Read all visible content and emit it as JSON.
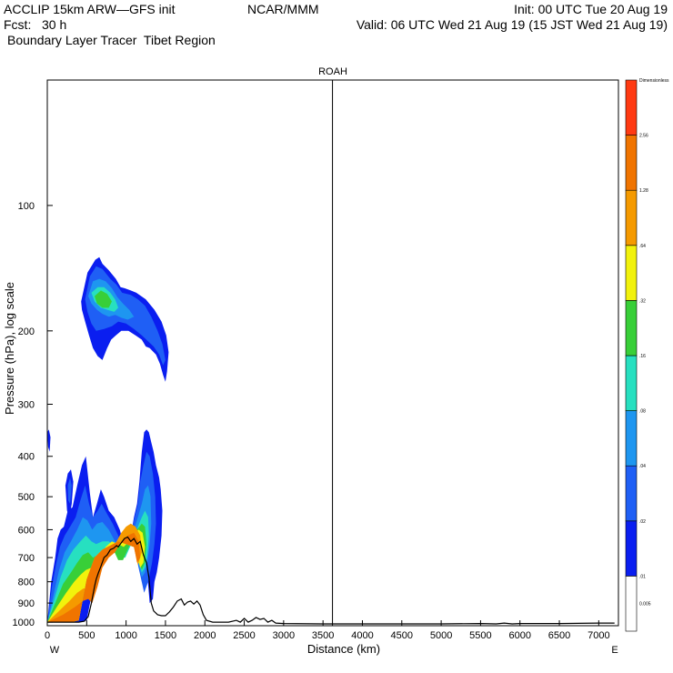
{
  "header": {
    "line1_left": "ACCLIP 15km ARW—GFS init",
    "line1_center": "NCAR/MMM",
    "line1_right": "Init: 00 UTC Tue 20 Aug 19",
    "line2_left": "Fcst:   30 h",
    "line2_right": "Valid: 06 UTC Wed 21 Aug 19 (15 JST Wed 21 Aug 19)",
    "line3_left": "Boundary Layer Tracer  Tibet Region"
  },
  "chart_data": {
    "type": "cross-section",
    "title": "ROAH",
    "xlabel": "Distance (km)",
    "ylabel": "Pressure (hPa), log scale",
    "x_ticks": [
      0,
      500,
      1000,
      1500,
      2000,
      2500,
      3000,
      3500,
      4000,
      4500,
      5000,
      5500,
      6000,
      6500,
      7000
    ],
    "xlim": [
      0,
      7250
    ],
    "y_scale": "log",
    "y_ticks": [
      100,
      200,
      300,
      400,
      500,
      600,
      700,
      800,
      900,
      1000
    ],
    "ylim": [
      1020,
      50
    ],
    "x_left_label": "W",
    "x_right_label": "E",
    "vertical_line_km": 3620,
    "colorbar": {
      "levels": [
        "0.005",
        ".01",
        ".02",
        ".04",
        ".08",
        ".16",
        ".32",
        ".64",
        "1.28",
        "2.56",
        "Dimensionless"
      ],
      "colors": [
        "#ffffff",
        "#0a1ef0",
        "#1f5ff5",
        "#1e96f0",
        "#27e0c0",
        "#38cf38",
        "#f2f20c",
        "#f59a00",
        "#f07400",
        "#ff3a12"
      ]
    },
    "terrain": {
      "x_km": [
        0,
        100,
        200,
        300,
        400,
        470,
        520,
        560,
        580,
        600,
        620,
        650,
        680,
        720,
        760,
        800,
        840,
        880,
        900,
        940,
        980,
        1020,
        1060,
        1100,
        1140,
        1180,
        1220,
        1260,
        1290,
        1320,
        1350,
        1400,
        1450,
        1500,
        1550,
        1600,
        1650,
        1700,
        1740,
        1780,
        1820,
        1860,
        1900,
        1940,
        1980,
        2020,
        2100,
        2200,
        2300,
        2400,
        2450,
        2500,
        2550,
        2600,
        2650,
        2700,
        2750,
        2800,
        2850,
        2900,
        3000,
        3500,
        4000,
        4500,
        5000,
        5500,
        5700,
        5800,
        5900,
        6000,
        6500,
        7000,
        7200
      ],
      "p_hpa": [
        1000,
        1000,
        1000,
        1000,
        1000,
        995,
        970,
        900,
        860,
        820,
        790,
        760,
        735,
        700,
        690,
        670,
        665,
        655,
        660,
        645,
        630,
        625,
        640,
        630,
        650,
        640,
        690,
        720,
        780,
        900,
        940,
        960,
        965,
        965,
        945,
        920,
        890,
        880,
        910,
        895,
        890,
        905,
        890,
        910,
        960,
        990,
        1000,
        1000,
        1000,
        990,
        1000,
        980,
        1000,
        990,
        975,
        985,
        980,
        1000,
        990,
        1005,
        1008,
        1010,
        1010,
        1010,
        1010,
        1008,
        1010,
        1005,
        1010,
        1008,
        1008,
        1005,
        1005
      ]
    },
    "tracer_blobs": [
      {
        "level": ".01",
        "x_km": [
          430,
          510,
          610,
          660,
          700,
          780,
          870,
          930,
          980,
          1060,
          1130,
          1250,
          1360,
          1450,
          1510,
          1540,
          1520,
          1500,
          1470,
          1430,
          1380,
          1300,
          1250,
          1200,
          1120,
          1030,
          940,
          870,
          810,
          760,
          700,
          640,
          580,
          530,
          480,
          440
        ],
        "p_hpa": [
          170,
          145,
          135,
          133,
          138,
          143,
          150,
          157,
          158,
          160,
          162,
          168,
          178,
          190,
          205,
          225,
          250,
          265,
          255,
          240,
          228,
          220,
          218,
          210,
          205,
          200,
          200,
          205,
          210,
          220,
          235,
          230,
          220,
          205,
          190,
          178
        ]
      },
      {
        "level": ".02",
        "x_km": [
          480,
          540,
          620,
          700,
          800,
          880,
          950,
          1060,
          1150,
          1240,
          1320,
          1400,
          1460,
          1500,
          1470,
          1420,
          1350,
          1280,
          1200,
          1100,
          1000,
          900,
          820,
          720,
          620,
          560,
          510
        ],
        "p_hpa": [
          168,
          148,
          140,
          142,
          150,
          155,
          162,
          164,
          168,
          174,
          185,
          200,
          215,
          235,
          242,
          228,
          218,
          212,
          205,
          198,
          192,
          190,
          195,
          198,
          200,
          192,
          180
        ]
      },
      {
        "level": ".04",
        "x_km": [
          520,
          580,
          660,
          740,
          820,
          890,
          960,
          1040,
          1100,
          1020,
          940,
          860,
          780,
          700,
          630,
          560
        ],
        "p_hpa": [
          165,
          152,
          150,
          152,
          158,
          166,
          172,
          178,
          185,
          188,
          186,
          183,
          185,
          182,
          178,
          172
        ]
      },
      {
        "level": ".08",
        "x_km": [
          560,
          640,
          720,
          800,
          860,
          900,
          850,
          760,
          680,
          600
        ],
        "p_hpa": [
          162,
          157,
          157,
          162,
          168,
          176,
          180,
          178,
          176,
          170
        ]
      },
      {
        "level": ".16",
        "x_km": [
          600,
          680,
          760,
          820,
          780,
          700,
          630
        ],
        "p_hpa": [
          165,
          160,
          163,
          170,
          176,
          176,
          172
        ]
      },
      {
        "level": ".01",
        "x_km": [
          0,
          50,
          100,
          130,
          170,
          210,
          260,
          320,
          380,
          440,
          490,
          540,
          580,
          630,
          680,
          720,
          780,
          850,
          920,
          970,
          1020,
          1060,
          1100,
          1140,
          1170,
          1200,
          1230,
          1260,
          1290,
          1320,
          1350,
          1380,
          1420,
          1440,
          1460,
          1450,
          1420,
          1390,
          1360,
          1340,
          1300,
          1240,
          1100,
          900,
          700,
          600,
          500,
          400,
          300,
          200,
          100,
          0
        ],
        "p_hpa": [
          1000,
          800,
          700,
          630,
          600,
          590,
          540,
          530,
          470,
          420,
          400,
          490,
          560,
          520,
          480,
          500,
          540,
          560,
          600,
          650,
          640,
          620,
          560,
          520,
          460,
          390,
          350,
          345,
          350,
          370,
          390,
          420,
          450,
          480,
          540,
          620,
          700,
          760,
          800,
          880,
          900,
          660,
          640,
          670,
          700,
          790,
          990,
          1000,
          1000,
          1000,
          1000,
          1000
        ]
      },
      {
        "level": ".02",
        "x_km": [
          0,
          60,
          110,
          160,
          220,
          290,
          360,
          420,
          480,
          530,
          580,
          640,
          690,
          760,
          830,
          900,
          960,
          1010,
          1060,
          1100,
          1150,
          1180,
          1220,
          1260,
          1300,
          1340,
          1370,
          1380,
          1360,
          1330,
          1280,
          1230,
          1100,
          900,
          700,
          600,
          500,
          400,
          300,
          200,
          100,
          0
        ],
        "p_hpa": [
          1000,
          820,
          730,
          660,
          620,
          590,
          560,
          510,
          470,
          520,
          560,
          540,
          520,
          550,
          580,
          620,
          665,
          650,
          610,
          570,
          520,
          460,
          420,
          390,
          400,
          440,
          500,
          580,
          650,
          720,
          800,
          850,
          660,
          640,
          670,
          700,
          790,
          990,
          1000,
          1000,
          1000,
          1000
        ]
      },
      {
        "level": ".04",
        "x_km": [
          0,
          80,
          150,
          220,
          300,
          380,
          450,
          510,
          570,
          630,
          700,
          780,
          860,
          930,
          990,
          1050,
          1100,
          1150,
          1200,
          1240,
          1280,
          1310,
          1320,
          1300,
          1270,
          1240,
          1200,
          1100,
          900,
          700,
          600,
          500,
          400,
          300,
          200,
          100,
          0
        ],
        "p_hpa": [
          1000,
          860,
          750,
          680,
          640,
          600,
          560,
          570,
          600,
          580,
          575,
          600,
          640,
          680,
          670,
          630,
          600,
          560,
          520,
          480,
          470,
          500,
          580,
          650,
          720,
          760,
          780,
          660,
          640,
          670,
          700,
          790,
          990,
          1000,
          1000,
          1000,
          1000
        ]
      },
      {
        "level": ".08",
        "x_km": [
          0,
          90,
          170,
          250,
          330,
          420,
          490,
          560,
          620,
          700,
          780,
          860,
          930,
          990,
          1050,
          1100,
          1150,
          1200,
          1240,
          1280,
          1290,
          1270,
          1240,
          1200,
          1100,
          900,
          700,
          600,
          500,
          400,
          300,
          200,
          100,
          0
        ],
        "p_hpa": [
          1000,
          880,
          780,
          710,
          670,
          640,
          620,
          640,
          650,
          640,
          640,
          660,
          700,
          700,
          660,
          630,
          590,
          560,
          540,
          560,
          620,
          690,
          740,
          760,
          660,
          640,
          670,
          700,
          790,
          990,
          1000,
          1000,
          1000,
          1000
        ]
      },
      {
        "level": ".16",
        "x_km": [
          0,
          100,
          200,
          300,
          380,
          450,
          520,
          580,
          640,
          700,
          760,
          830,
          900,
          960,
          1020,
          1080,
          1140,
          1200,
          1240,
          1260,
          1240,
          1200,
          1100,
          900,
          700,
          600,
          500,
          400,
          300,
          200,
          100,
          0
        ],
        "p_hpa": [
          1000,
          900,
          810,
          760,
          720,
          690,
          680,
          700,
          690,
          670,
          660,
          665,
          710,
          710,
          670,
          630,
          600,
          580,
          590,
          650,
          720,
          750,
          660,
          640,
          670,
          700,
          790,
          990,
          1000,
          1000,
          1000,
          1000
        ]
      },
      {
        "level": ".32",
        "x_km": [
          0,
          120,
          240,
          340,
          420,
          490,
          560,
          610,
          670,
          740,
          820,
          900,
          970,
          1040,
          1100,
          1160,
          1210,
          1240,
          1220,
          1180,
          1100,
          900,
          700,
          600,
          500,
          400,
          300,
          200,
          100,
          0
        ],
        "p_hpa": [
          1000,
          920,
          850,
          800,
          770,
          750,
          740,
          760,
          700,
          660,
          640,
          650,
          660,
          640,
          610,
          600,
          610,
          660,
          720,
          740,
          660,
          640,
          670,
          700,
          790,
          990,
          1000,
          1000,
          1000,
          1000
        ]
      },
      {
        "level": ".64",
        "x_km": [
          0,
          150,
          280,
          380,
          460,
          520,
          580,
          640,
          700,
          760,
          820,
          880,
          940,
          1000,
          1060,
          1120,
          1180,
          1200,
          1150,
          1100,
          900,
          700,
          600,
          500,
          400,
          300,
          200,
          100,
          0
        ],
        "p_hpa": [
          1000,
          940,
          890,
          850,
          830,
          830,
          860,
          760,
          700,
          680,
          660,
          640,
          610,
          590,
          580,
          590,
          620,
          680,
          730,
          660,
          640,
          670,
          700,
          790,
          990,
          1000,
          1000,
          1000,
          1000
        ]
      },
      {
        "level": "1.28",
        "x_km": [
          0,
          200,
          350,
          450,
          520,
          570,
          640,
          700,
          780,
          860,
          940,
          1020,
          1100,
          1160,
          1180,
          1140,
          1100,
          900,
          700,
          600,
          500,
          400,
          300,
          200,
          100,
          0
        ],
        "p_hpa": [
          1000,
          960,
          920,
          890,
          880,
          900,
          820,
          740,
          700,
          680,
          640,
          620,
          610,
          640,
          700,
          720,
          660,
          640,
          670,
          700,
          790,
          990,
          1000,
          1000,
          1000,
          1000
        ]
      },
      {
        "level": ".01",
        "x_km": [
          230,
          260,
          300,
          330,
          310,
          280,
          250
        ],
        "p_hpa": [
          470,
          440,
          430,
          460,
          520,
          560,
          540
        ]
      },
      {
        "level": ".02",
        "x_km": [
          260,
          290,
          310,
          290,
          265
        ],
        "p_hpa": [
          470,
          450,
          470,
          520,
          510
        ]
      },
      {
        "level": ".01",
        "x_km": [
          0,
          20,
          40,
          30,
          10
        ],
        "p_hpa": [
          350,
          345,
          360,
          390,
          380
        ]
      }
    ]
  }
}
